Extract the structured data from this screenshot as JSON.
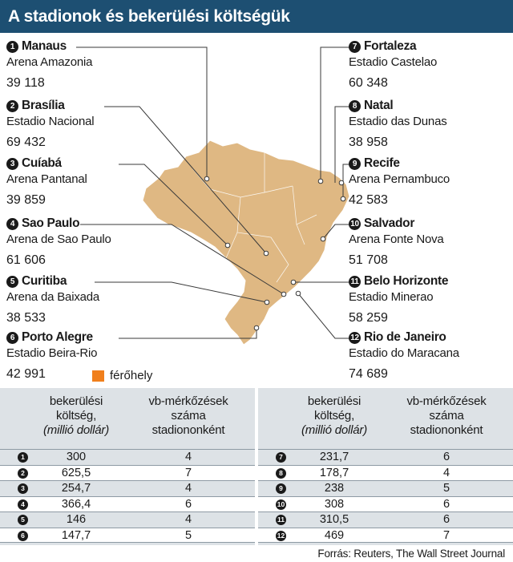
{
  "title": "A stadionok és bekerülési költségük",
  "legend": {
    "label": "férőhely",
    "color": "#f07f1c"
  },
  "colors": {
    "header": "#1d4f72",
    "accent": "#f07f1c",
    "map": "#dfb883",
    "table_bg": "#dde2e6"
  },
  "table": {
    "headers": {
      "cost": [
        "bekerülési",
        "költség,",
        "(millió dollár)"
      ],
      "matches": [
        "vb-mérkőzések",
        "száma",
        "stadiononként"
      ]
    }
  },
  "stadiums": [
    {
      "num": "1",
      "city": "Manaus",
      "arena": "Arena Amazonia",
      "capacity": "39 118",
      "cost": "300",
      "matches": "4"
    },
    {
      "num": "2",
      "city": "Brasília",
      "arena": "Estadio Nacional",
      "capacity": "69 432",
      "cost": "625,5",
      "matches": "7"
    },
    {
      "num": "3",
      "city": "Cuíabá",
      "arena": "Arena Pantanal",
      "capacity": "39 859",
      "cost": "254,7",
      "matches": "4"
    },
    {
      "num": "4",
      "city": "Sao Paulo",
      "arena": "Arena de Sao Paulo",
      "capacity": "61 606",
      "cost": "366,4",
      "matches": "6"
    },
    {
      "num": "5",
      "city": "Curitiba",
      "arena": "Arena da Baixada",
      "capacity": "38 533",
      "cost": "146",
      "matches": "4"
    },
    {
      "num": "6",
      "city": "Porto Alegre",
      "arena": "Estadio Beira-Rio",
      "capacity": "42 991",
      "cost": "147,7",
      "matches": "5"
    },
    {
      "num": "7",
      "city": "Fortaleza",
      "arena": "Estadio Castelao",
      "capacity": "60 348",
      "cost": "231,7",
      "matches": "6"
    },
    {
      "num": "8",
      "city": "Natal",
      "arena": "Estadio das Dunas",
      "capacity": "38 958",
      "cost": "178,7",
      "matches": "4"
    },
    {
      "num": "9",
      "city": "Recife",
      "arena": "Arena Pernambuco",
      "capacity": "42 583",
      "cost": "238",
      "matches": "5"
    },
    {
      "num": "10",
      "city": "Salvador",
      "arena": "Arena Fonte Nova",
      "capacity": "51 708",
      "cost": "308",
      "matches": "6"
    },
    {
      "num": "11",
      "city": "Belo Horizonte",
      "arena": "Estadio Minerao",
      "capacity": "58 259",
      "cost": "310,5",
      "matches": "6"
    },
    {
      "num": "12",
      "city": "Rio de Janeiro",
      "arena": "Estadio do Maracana",
      "capacity": "74 689",
      "cost": "469",
      "matches": "7"
    }
  ],
  "chart_data": {
    "type": "bar",
    "categories": [
      "Manaus",
      "Brasília",
      "Cuíabá",
      "Sao Paulo",
      "Curitiba",
      "Porto Alegre",
      "Fortaleza",
      "Natal",
      "Recife",
      "Salvador",
      "Belo Horizonte",
      "Rio de Janeiro"
    ],
    "series": [
      {
        "name": "férőhely",
        "values": [
          39118,
          69432,
          39859,
          61606,
          38533,
          42991,
          60348,
          38958,
          42583,
          51708,
          58259,
          74689
        ]
      }
    ],
    "cost_million_usd": [
      300,
      625.5,
      254.7,
      366.4,
      146,
      147.7,
      231.7,
      178.7,
      238,
      308,
      310.5,
      469
    ],
    "matches_per_stadium": [
      4,
      7,
      4,
      6,
      4,
      5,
      6,
      4,
      5,
      6,
      6,
      7
    ]
  },
  "source": "Forrás: Reuters, The Wall Street Journal"
}
